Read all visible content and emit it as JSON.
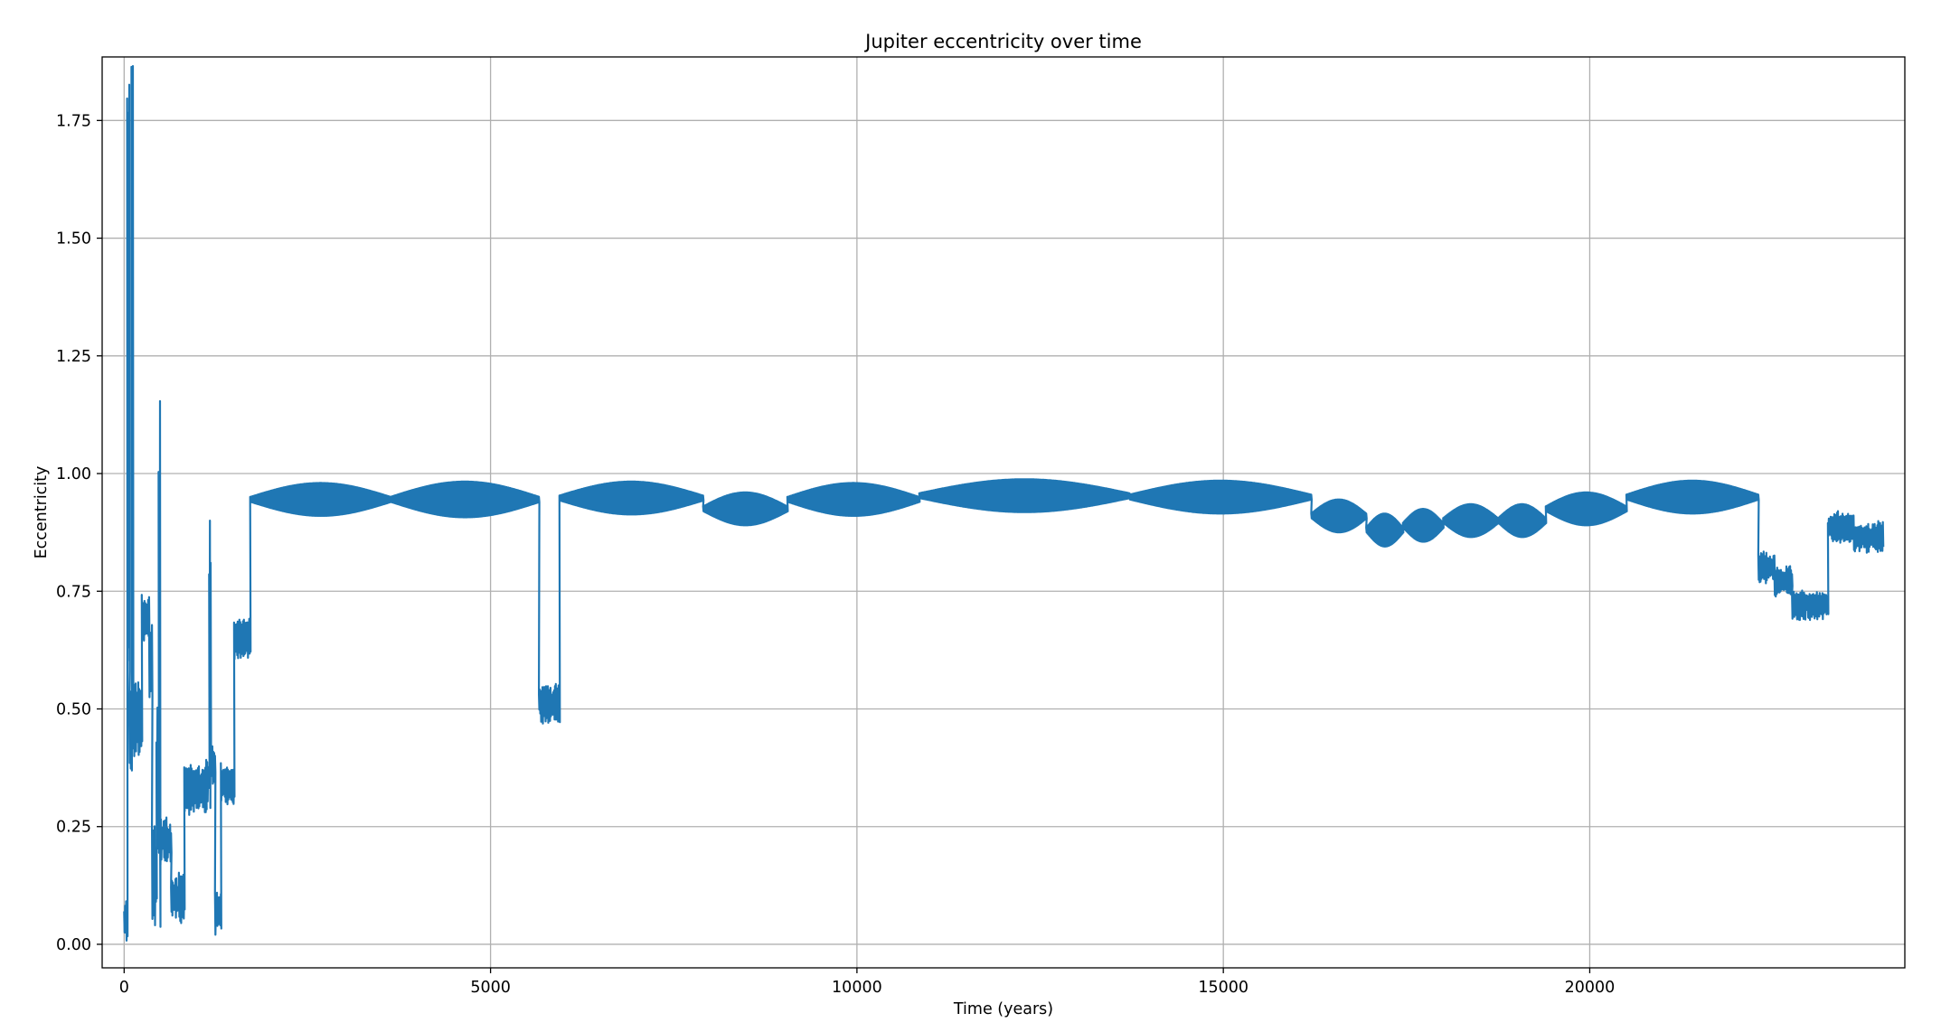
{
  "chart_data": {
    "type": "line",
    "title": "Jupiter eccentricity over time",
    "xlabel": "Time (years)",
    "ylabel": "Eccentricity",
    "xlim": [
      -300,
      24300
    ],
    "ylim": [
      -0.05,
      1.885
    ],
    "xticks": [
      0,
      5000,
      10000,
      15000,
      20000
    ],
    "xtick_labels": [
      "0",
      "5000",
      "10000",
      "15000",
      "20000"
    ],
    "yticks": [
      0.0,
      0.25,
      0.5,
      0.75,
      1.0,
      1.25,
      1.5,
      1.75
    ],
    "ytick_labels": [
      "0.00",
      "0.25",
      "0.50",
      "0.75",
      "1.00",
      "1.25",
      "1.50",
      "1.75"
    ],
    "grid": true,
    "legend": "none",
    "series_color": "#1f77b4",
    "series": [
      {
        "name": "",
        "description_of_shape": "early chaotic phase with spikes, then rapid oscillation bands around 0.95",
        "segments": [
          {
            "t0": 0,
            "t1": 40,
            "mean": 0.05,
            "amp": 0.05
          },
          {
            "t0": 40,
            "t1": 70,
            "mean": 1.2,
            "amp": 0.7
          },
          {
            "t0": 70,
            "t1": 100,
            "mean": 0.45,
            "amp": 0.1
          },
          {
            "t0": 100,
            "t1": 120,
            "mean": 1.2,
            "amp": 0.7
          },
          {
            "t0": 120,
            "t1": 240,
            "mean": 0.48,
            "amp": 0.08
          },
          {
            "t0": 240,
            "t1": 340,
            "mean": 0.69,
            "amp": 0.05
          },
          {
            "t0": 340,
            "t1": 380,
            "mean": 0.6,
            "amp": 0.08
          },
          {
            "t0": 380,
            "t1": 440,
            "mean": 0.15,
            "amp": 0.12
          },
          {
            "t0": 440,
            "t1": 470,
            "mean": 0.35,
            "amp": 0.15
          },
          {
            "t0": 470,
            "t1": 490,
            "mean": 0.6,
            "amp": 0.6
          },
          {
            "t0": 490,
            "t1": 640,
            "mean": 0.22,
            "amp": 0.05
          },
          {
            "t0": 640,
            "t1": 820,
            "mean": 0.1,
            "amp": 0.05
          },
          {
            "t0": 820,
            "t1": 1120,
            "mean": 0.33,
            "amp": 0.05
          },
          {
            "t0": 1120,
            "t1": 1160,
            "mean": 0.35,
            "amp": 0.05
          },
          {
            "t0": 1160,
            "t1": 1180,
            "mean": 0.6,
            "amp": 0.4
          },
          {
            "t0": 1180,
            "t1": 1240,
            "mean": 0.38,
            "amp": 0.04
          },
          {
            "t0": 1240,
            "t1": 1320,
            "mean": 0.07,
            "amp": 0.05
          },
          {
            "t0": 1320,
            "t1": 1500,
            "mean": 0.34,
            "amp": 0.04
          },
          {
            "t0": 1500,
            "t1": 1720,
            "mean": 0.65,
            "amp": 0.04
          },
          {
            "t0": 1720,
            "t1": 3640,
            "mean": 0.945,
            "amp": 0.035
          },
          {
            "t0": 3640,
            "t1": 5660,
            "mean": 0.945,
            "amp": 0.038
          },
          {
            "t0": 5660,
            "t1": 5940,
            "mean": 0.51,
            "amp": 0.04
          },
          {
            "t0": 5940,
            "t1": 7900,
            "mean": 0.948,
            "amp": 0.035
          },
          {
            "t0": 7900,
            "t1": 9050,
            "mean": 0.925,
            "amp": 0.035
          },
          {
            "t0": 9050,
            "t1": 10850,
            "mean": 0.945,
            "amp": 0.035
          },
          {
            "t0": 10850,
            "t1": 13720,
            "mean": 0.953,
            "amp": 0.035
          },
          {
            "t0": 13720,
            "t1": 16200,
            "mean": 0.95,
            "amp": 0.035
          },
          {
            "t0": 16200,
            "t1": 16950,
            "mean": 0.91,
            "amp": 0.035
          },
          {
            "t0": 16950,
            "t1": 17450,
            "mean": 0.88,
            "amp": 0.035
          },
          {
            "t0": 17450,
            "t1": 18000,
            "mean": 0.89,
            "amp": 0.035
          },
          {
            "t0": 18000,
            "t1": 18750,
            "mean": 0.9,
            "amp": 0.035
          },
          {
            "t0": 18750,
            "t1": 19400,
            "mean": 0.9,
            "amp": 0.035
          },
          {
            "t0": 19400,
            "t1": 20500,
            "mean": 0.925,
            "amp": 0.035
          },
          {
            "t0": 20500,
            "t1": 22300,
            "mean": 0.95,
            "amp": 0.035
          },
          {
            "t0": 22300,
            "t1": 22520,
            "mean": 0.8,
            "amp": 0.03
          },
          {
            "t0": 22520,
            "t1": 22760,
            "mean": 0.77,
            "amp": 0.03
          },
          {
            "t0": 22760,
            "t1": 23000,
            "mean": 0.72,
            "amp": 0.03
          },
          {
            "t0": 23000,
            "t1": 23250,
            "mean": 0.72,
            "amp": 0.03
          },
          {
            "t0": 23250,
            "t1": 23600,
            "mean": 0.885,
            "amp": 0.03
          },
          {
            "t0": 23600,
            "t1": 24000,
            "mean": 0.865,
            "amp": 0.03
          }
        ]
      }
    ]
  }
}
